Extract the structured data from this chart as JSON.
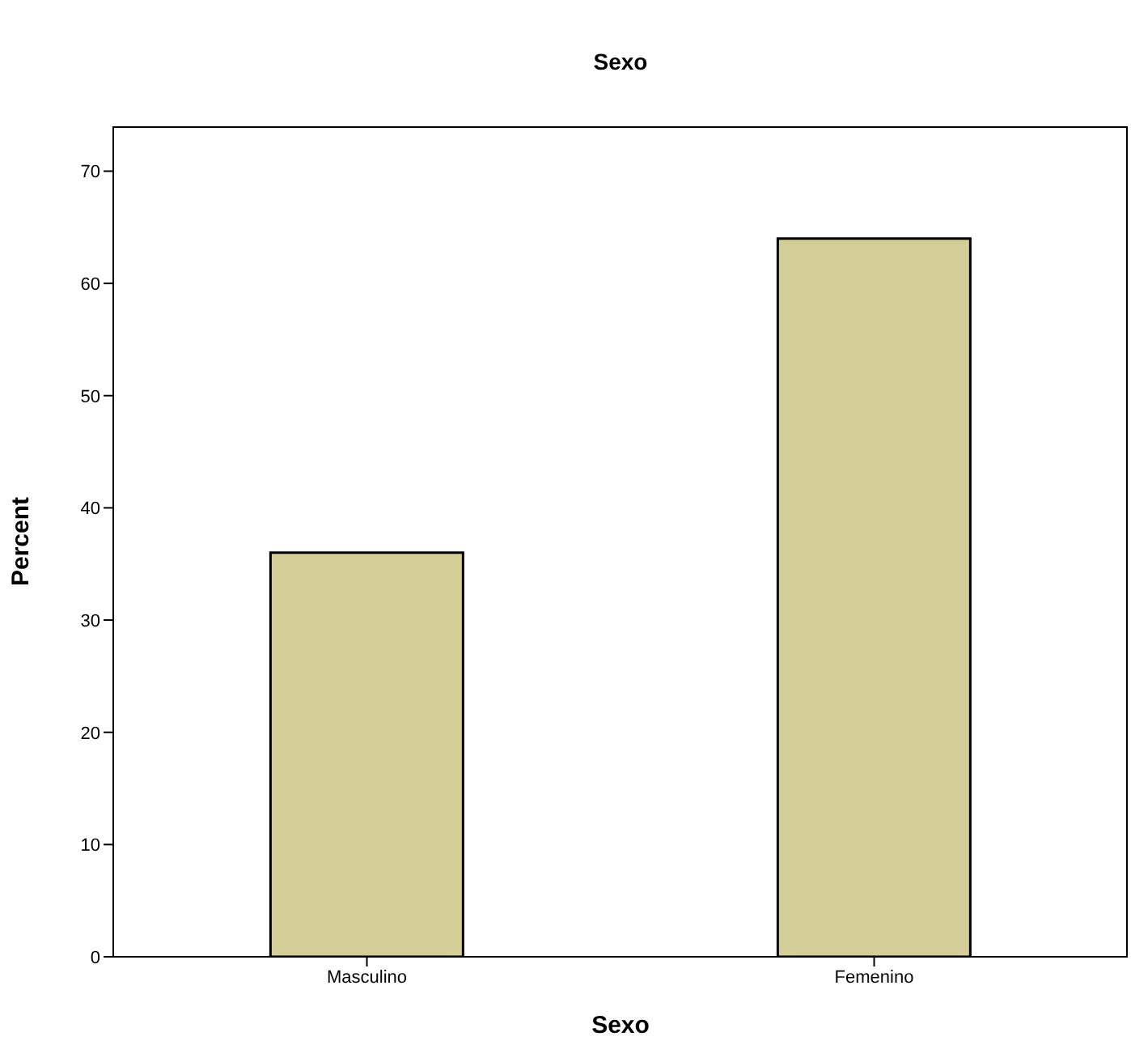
{
  "chart_data": {
    "type": "bar",
    "title": "Sexo",
    "xlabel": "Sexo",
    "ylabel": "Percent",
    "categories": [
      "Masculino",
      "Femenino"
    ],
    "series": [
      {
        "color": "#d3cd98",
        "values": [
          36,
          64
        ]
      }
    ],
    "ylim": [
      0,
      74
    ],
    "yticks": [
      0,
      10,
      20,
      30,
      40,
      50,
      60,
      70
    ],
    "grid": false
  }
}
